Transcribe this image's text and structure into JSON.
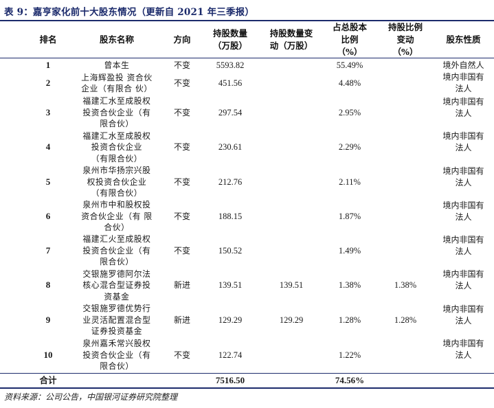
{
  "title": "表 9：嘉亨家化前十大股东情况（更新自 2021 年三季报）",
  "headers": [
    [
      "排名"
    ],
    [
      "股东名称"
    ],
    [
      "方向"
    ],
    [
      "持股数量",
      "（万股）"
    ],
    [
      "持股数量变",
      "动（万股）"
    ],
    [
      "占总股本",
      "比例",
      "（%）"
    ],
    [
      "持股比例",
      "变动",
      "（%）"
    ],
    [
      "股东性质"
    ]
  ],
  "rows": [
    {
      "rank": "1",
      "name": [
        "曾本生"
      ],
      "direction": "不变",
      "shares": "5593.82",
      "change": "",
      "ratio": "55.49%",
      "ratio_change": "",
      "nature": [
        "境外自然人"
      ]
    },
    {
      "rank": "2",
      "name": [
        "上海辉盈投 资合伙",
        "企业（有限合 伙）"
      ],
      "direction": "不变",
      "shares": "451.56",
      "change": "",
      "ratio": "4.48%",
      "ratio_change": "",
      "nature": [
        "境内非国有",
        "法人"
      ]
    },
    {
      "rank": "3",
      "name": [
        "福建汇水至成股权",
        "投资合伙企业（有",
        "限合伙）"
      ],
      "direction": "不变",
      "shares": "297.54",
      "change": "",
      "ratio": "2.95%",
      "ratio_change": "",
      "nature": [
        "境内非国有",
        "法人"
      ]
    },
    {
      "rank": "4",
      "name": [
        "福建汇水至成股权",
        "投资合伙企业",
        "（有限合伙）"
      ],
      "direction": "不变",
      "shares": "230.61",
      "change": "",
      "ratio": "2.29%",
      "ratio_change": "",
      "nature": [
        "境内非国有",
        "法人"
      ]
    },
    {
      "rank": "5",
      "name": [
        "泉州市华扬宗兴股",
        "权投资合伙企业",
        "（有限合伙）"
      ],
      "direction": "不变",
      "shares": "212.76",
      "change": "",
      "ratio": "2.11%",
      "ratio_change": "",
      "nature": [
        "境内非国有",
        "法人"
      ]
    },
    {
      "rank": "6",
      "name": [
        "泉州市中和股权投",
        "资合伙企业（有 限",
        "合伙）"
      ],
      "direction": "不变",
      "shares": "188.15",
      "change": "",
      "ratio": "1.87%",
      "ratio_change": "",
      "nature": [
        "境内非国有",
        "法人"
      ]
    },
    {
      "rank": "7",
      "name": [
        "福建汇火至成股权",
        "投资合伙企业（有",
        "限合伙）"
      ],
      "direction": "不变",
      "shares": "150.52",
      "change": "",
      "ratio": "1.49%",
      "ratio_change": "",
      "nature": [
        "境内非国有",
        "法人"
      ]
    },
    {
      "rank": "8",
      "name": [
        "交银施罗德阿尔法",
        "核心混合型证券投",
        "资基金"
      ],
      "direction": "新进",
      "shares": "139.51",
      "change": "139.51",
      "ratio": "1.38%",
      "ratio_change": "1.38%",
      "nature": [
        "境内非国有",
        "法人"
      ]
    },
    {
      "rank": "9",
      "name": [
        "交银施罗德优势行",
        "业灵活配置混合型",
        "证券投资基金"
      ],
      "direction": "新进",
      "shares": "129.29",
      "change": "129.29",
      "ratio": "1.28%",
      "ratio_change": "1.28%",
      "nature": [
        "境内非国有",
        "法人"
      ]
    },
    {
      "rank": "10",
      "name": [
        "泉州嘉禾常兴股权",
        "投资合伙企业（有",
        "限合伙）"
      ],
      "direction": "不变",
      "shares": "122.74",
      "change": "",
      "ratio": "1.22%",
      "ratio_change": "",
      "nature": [
        "境内非国有",
        "法人"
      ]
    }
  ],
  "total": {
    "label": "合计",
    "shares": "7516.50",
    "ratio": "74.56%"
  },
  "source": "资料来源：公司公告，中国银河证券研究院整理",
  "colors": {
    "accent": "#1b2a6b"
  }
}
